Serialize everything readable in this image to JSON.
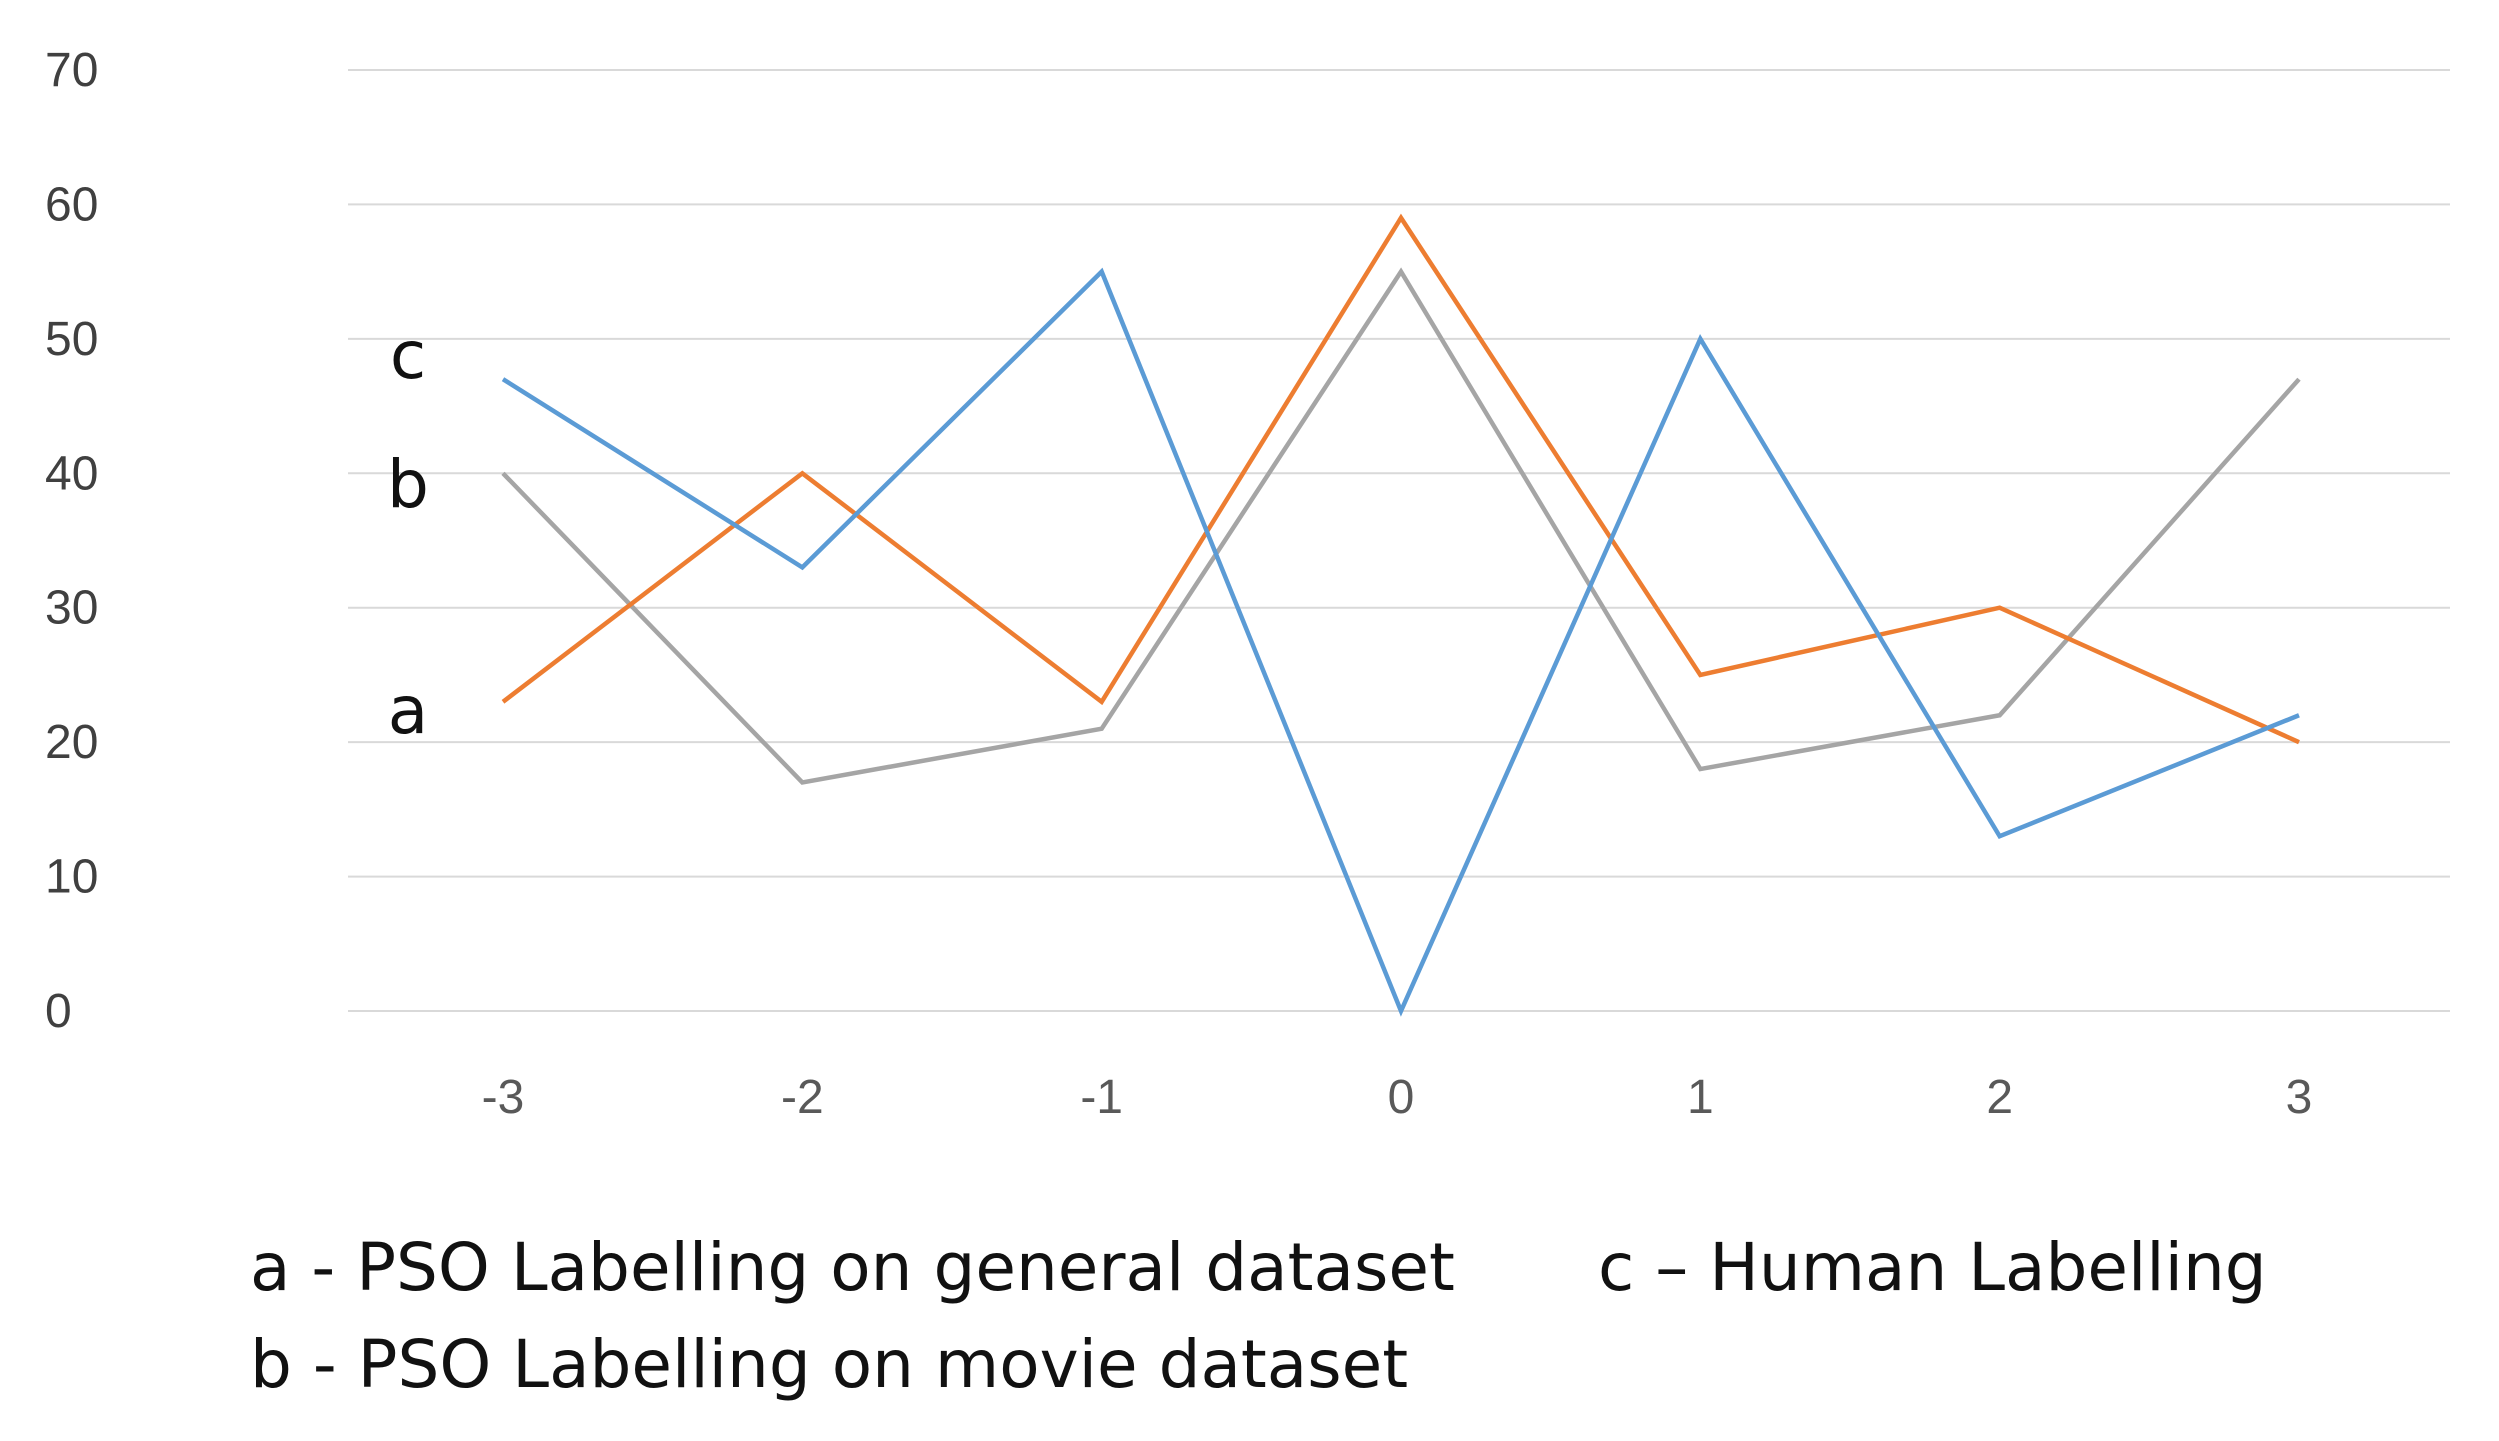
{
  "chart_data": {
    "type": "line",
    "title": "",
    "xlabel": "",
    "ylabel": "",
    "categories": [
      "-3",
      "-2",
      "-1",
      "0",
      "1",
      "2",
      "3"
    ],
    "ylim": [
      0,
      70
    ],
    "yticks": [
      "0",
      "10",
      "20",
      "30",
      "40",
      "50",
      "60",
      "70"
    ],
    "grid": true,
    "series": [
      {
        "key": "a",
        "tag": "a",
        "name": "PSO Labelling on general dataset",
        "legend_label": "a - PSO Labelling on general dataset",
        "color": "#ED7D31",
        "values": [
          23,
          40,
          23,
          59,
          25,
          30,
          20
        ]
      },
      {
        "key": "b",
        "tag": "b",
        "name": "PSO Labelling on movie dataset",
        "legend_label": "b - PSO Labelling on movie dataset",
        "color": "#A5A5A5",
        "values": [
          40,
          17,
          21,
          55,
          18,
          22,
          47
        ]
      },
      {
        "key": "c",
        "tag": "c",
        "name": "Human Labelling",
        "legend_label": "c – Human Labelling",
        "color": "#5B9BD5",
        "values": [
          47,
          33,
          55,
          0,
          50,
          13,
          22
        ]
      }
    ],
    "legend": "bottom"
  }
}
